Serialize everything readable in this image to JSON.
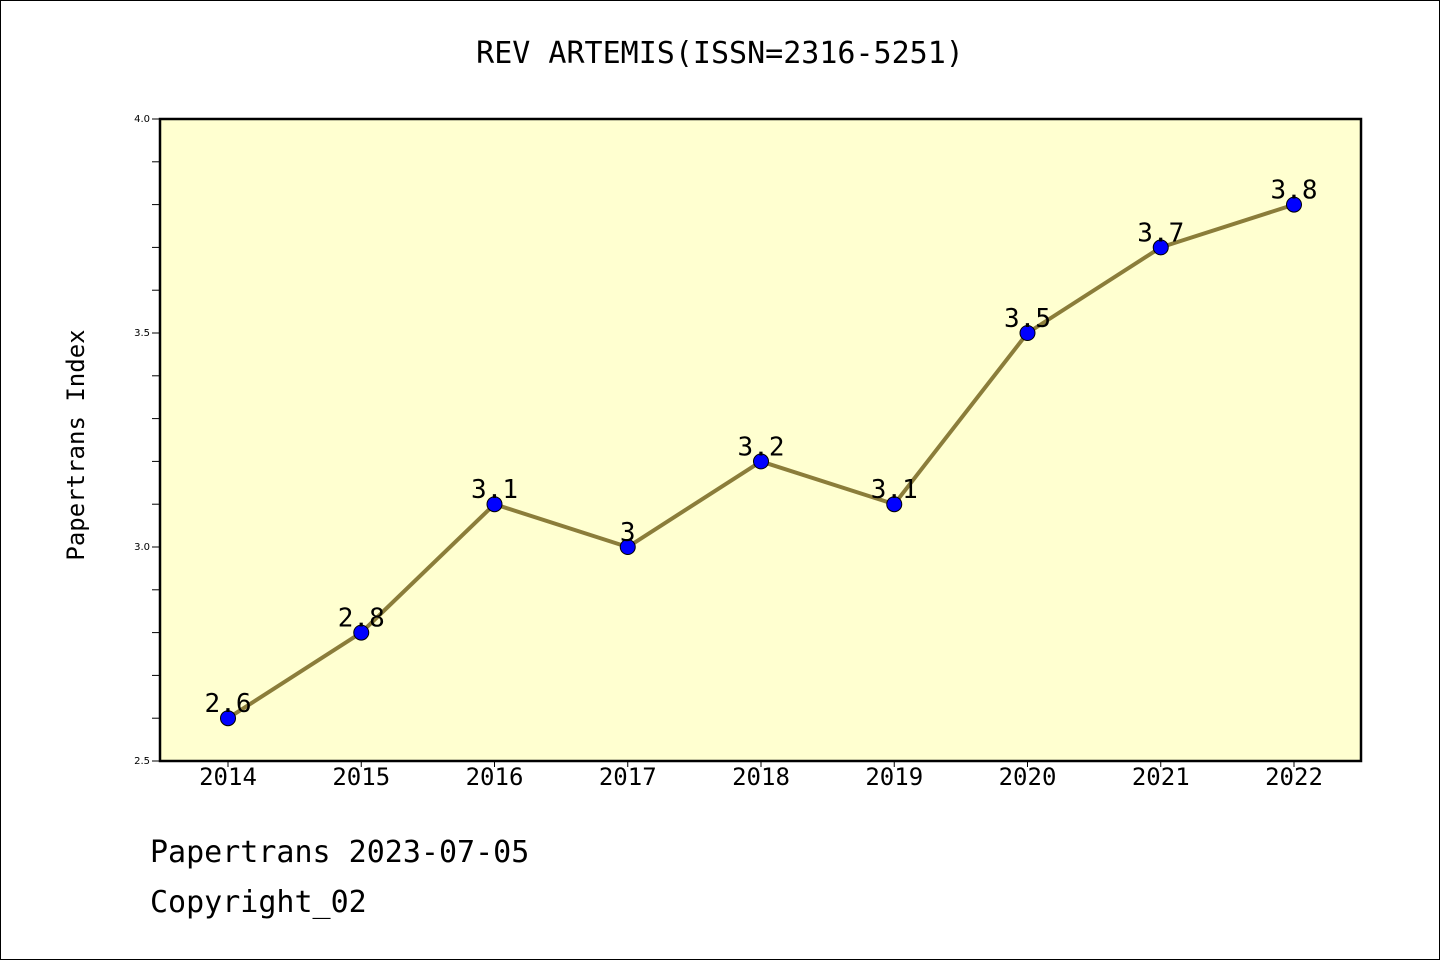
{
  "chart_data": {
    "type": "line",
    "title": "REV ARTEMIS(ISSN=2316-5251)",
    "xlabel": "",
    "ylabel": "Papertrans Index",
    "categories": [
      "2014",
      "2015",
      "2016",
      "2017",
      "2018",
      "2019",
      "2020",
      "2021",
      "2022"
    ],
    "values": [
      2.6,
      2.8,
      3.1,
      3.0,
      3.2,
      3.1,
      3.5,
      3.7,
      3.8
    ],
    "data_labels": [
      "2.6",
      "2.8",
      "3.1",
      "3",
      "3.2",
      "3.1",
      "3.5",
      "3.7",
      "3.8"
    ],
    "ylim": [
      2.5,
      4.0
    ],
    "yticks": [
      "2.5",
      "3.0",
      "3.5",
      "4.0"
    ],
    "grid": false,
    "colors": {
      "plot_background": "#ffffd0",
      "line": "#8b7d3a",
      "marker": "#0000ff"
    }
  },
  "footer": {
    "line1": "Papertrans 2023-07-05",
    "line2": "Copyright_02"
  }
}
